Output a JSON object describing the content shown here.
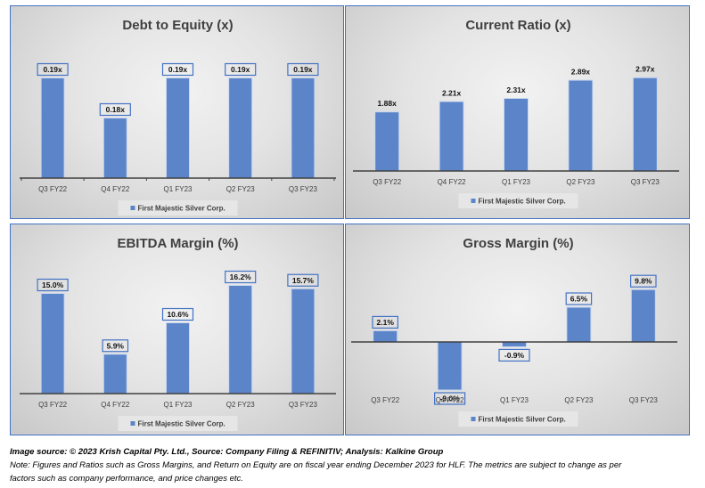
{
  "colors": {
    "bar": "#5b84c9",
    "bar_edge": "#c9d7ef",
    "axis": "#404040",
    "label_border": "#4472c4",
    "legend_bg": "#e6e6e6",
    "panel_border": "#4472c4"
  },
  "chart_data": [
    {
      "type": "bar",
      "title": "Debt to Equity (x)",
      "categories": [
        "Q3 FY22",
        "Q4 FY22",
        "Q1 FY23",
        "Q2 FY23",
        "Q3 FY23"
      ],
      "series": [
        {
          "name": "First Majestic Silver Corp.",
          "values": [
            0.19,
            0.18,
            0.19,
            0.19,
            0.19
          ]
        }
      ],
      "data_labels": [
        "0.19x",
        "0.18x",
        "0.19x",
        "0.19x",
        "0.19x"
      ],
      "label_boxed": true,
      "xlabel": "",
      "ylabel": "",
      "ylim": [
        0.165,
        0.195
      ],
      "grid": false,
      "legend": "bottom"
    },
    {
      "type": "bar",
      "title": "Current Ratio (x)",
      "categories": [
        "Q3 FY22",
        "Q4 FY22",
        "Q1 FY23",
        "Q2 FY23",
        "Q3 FY23"
      ],
      "series": [
        {
          "name": "First Majestic Silver Corp.",
          "values": [
            1.88,
            2.21,
            2.31,
            2.89,
            2.97
          ]
        }
      ],
      "data_labels": [
        "1.88x",
        "2.21x",
        "2.31x",
        "2.89x",
        "2.97x"
      ],
      "label_boxed": false,
      "xlabel": "",
      "ylabel": "",
      "ylim": [
        0,
        3.6
      ],
      "grid": false,
      "legend": "bottom"
    },
    {
      "type": "bar",
      "title": "EBITDA Margin (%)",
      "categories": [
        "Q3 FY22",
        "Q4 FY22",
        "Q1 FY23",
        "Q2 FY23",
        "Q3 FY23"
      ],
      "series": [
        {
          "name": "First Majestic Silver Corp.",
          "values": [
            15.0,
            5.9,
            10.6,
            16.2,
            15.7
          ]
        }
      ],
      "data_labels": [
        "15.0%",
        "5.9%",
        "10.6%",
        "16.2%",
        "15.7%"
      ],
      "label_boxed": true,
      "xlabel": "",
      "ylabel": "",
      "ylim": [
        0,
        18
      ],
      "grid": false,
      "legend": "bottom"
    },
    {
      "type": "bar",
      "title": "Gross Margin (%)",
      "categories": [
        "Q3 FY22",
        "Q4 FY22",
        "Q1 FY23",
        "Q2 FY23",
        "Q3 FY23"
      ],
      "series": [
        {
          "name": "First Majestic Silver Corp.",
          "values": [
            2.1,
            -9.0,
            -0.9,
            6.5,
            9.8
          ]
        }
      ],
      "data_labels": [
        "2.1%",
        "-9.0%",
        "-0.9%",
        "6.5%",
        "9.8%"
      ],
      "label_boxed": true,
      "xlabel": "",
      "ylabel": "",
      "ylim": [
        -10,
        12
      ],
      "grid": false,
      "legend": "bottom"
    }
  ],
  "footer": {
    "source": "Image source: © 2023 Krish Capital Pty. Ltd., Source: Company Filing & REFINITIV; Analysis: Kalkine Group",
    "note_line1": "Note: Figures and Ratios such as  Gross Margins, and Return on Equity are on fiscal year ending  December  2023  for HLF. The metrics are subject to change as per",
    "note_line2": "factors such as company performance, and price changes etc."
  }
}
